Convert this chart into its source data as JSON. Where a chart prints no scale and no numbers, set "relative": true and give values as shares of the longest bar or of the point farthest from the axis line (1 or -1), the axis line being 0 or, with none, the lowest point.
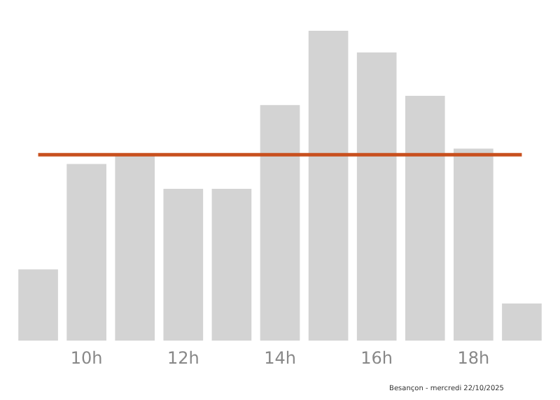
{
  "chart_data": {
    "type": "bar",
    "relative": true,
    "categories": [
      null,
      "10h",
      null,
      "12h",
      null,
      "14h",
      null,
      "16h",
      null,
      "18h",
      null
    ],
    "values": [
      0.23,
      0.57,
      0.6,
      0.49,
      0.49,
      0.76,
      1,
      0.93,
      0.79,
      0.62,
      0.12
    ],
    "color": "#d3d3d3",
    "ref_lines": [
      {
        "axis": "y",
        "value": 0.6,
        "color": "#c8501e"
      }
    ],
    "annotations": [
      "Besançon - mercredi 22/10/2025"
    ],
    "grid": false,
    "legend": false
  }
}
